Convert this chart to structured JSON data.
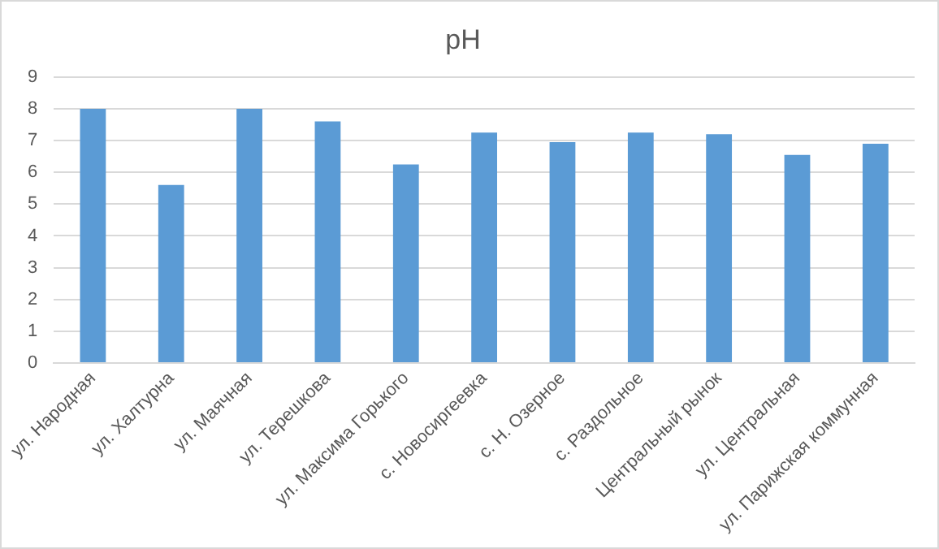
{
  "chart_data": {
    "type": "bar",
    "title": "pH",
    "categories": [
      "ул. Народная",
      "ул. Халтурна",
      "ул. Маячная",
      "ул. Терешкова",
      "ул. Максима Горького",
      "с. Новосиргеевка",
      "с. Н. Озерное",
      "с. Раздольное",
      "Центральный рынок",
      "ул. Центральная",
      "ул. Парижская коммунная"
    ],
    "values": [
      8.0,
      5.6,
      8.0,
      7.6,
      6.25,
      7.25,
      6.95,
      7.25,
      7.2,
      6.55,
      6.9
    ],
    "color": "#5b9bd5",
    "ylim": [
      0,
      9
    ],
    "yticks": [
      0,
      1,
      2,
      3,
      4,
      5,
      6,
      7,
      8,
      9
    ],
    "grid": "y",
    "legend": false
  }
}
